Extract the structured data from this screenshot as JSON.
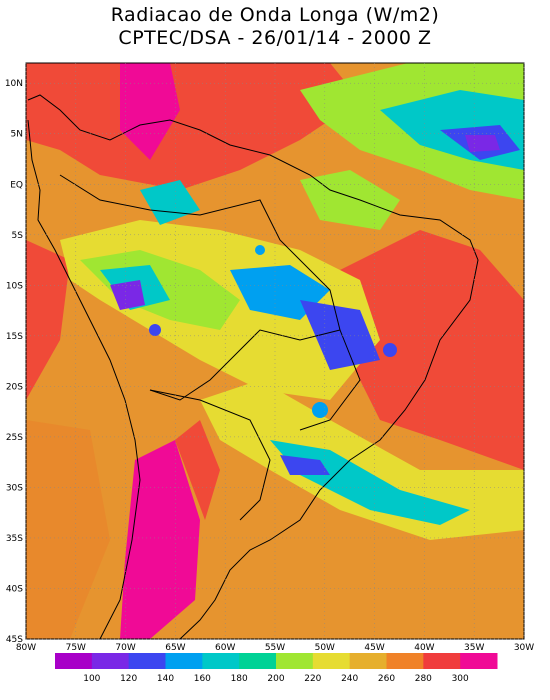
{
  "header": {
    "title": "Radiacao de Onda Longa (W/m2)",
    "subtitle": "CPTEC/DSA - 26/01/14 - 2000 Z"
  },
  "map": {
    "lat_labels": [
      "10N",
      "5N",
      "EQ",
      "5S",
      "10S",
      "15S",
      "20S",
      "25S",
      "30S",
      "35S",
      "40S",
      "45S"
    ],
    "lon_labels": [
      "80W",
      "75W",
      "70W",
      "65W",
      "60W",
      "55W",
      "50W",
      "45W",
      "40W",
      "35W",
      "30W"
    ],
    "extent": {
      "lon_min": -80,
      "lon_max": -30,
      "lat_min": -45,
      "lat_max": 12
    }
  },
  "colorbar": {
    "labels": [
      "100",
      "120",
      "140",
      "160",
      "180",
      "200",
      "220",
      "240",
      "260",
      "280",
      "300"
    ],
    "colors": [
      "#a800c8",
      "#7a28e6",
      "#3c46f0",
      "#00a0f0",
      "#00c8c8",
      "#00d296",
      "#a0e632",
      "#e6dc32",
      "#e6af2d",
      "#f08228",
      "#f03c3c",
      "#f00a96"
    ]
  }
}
